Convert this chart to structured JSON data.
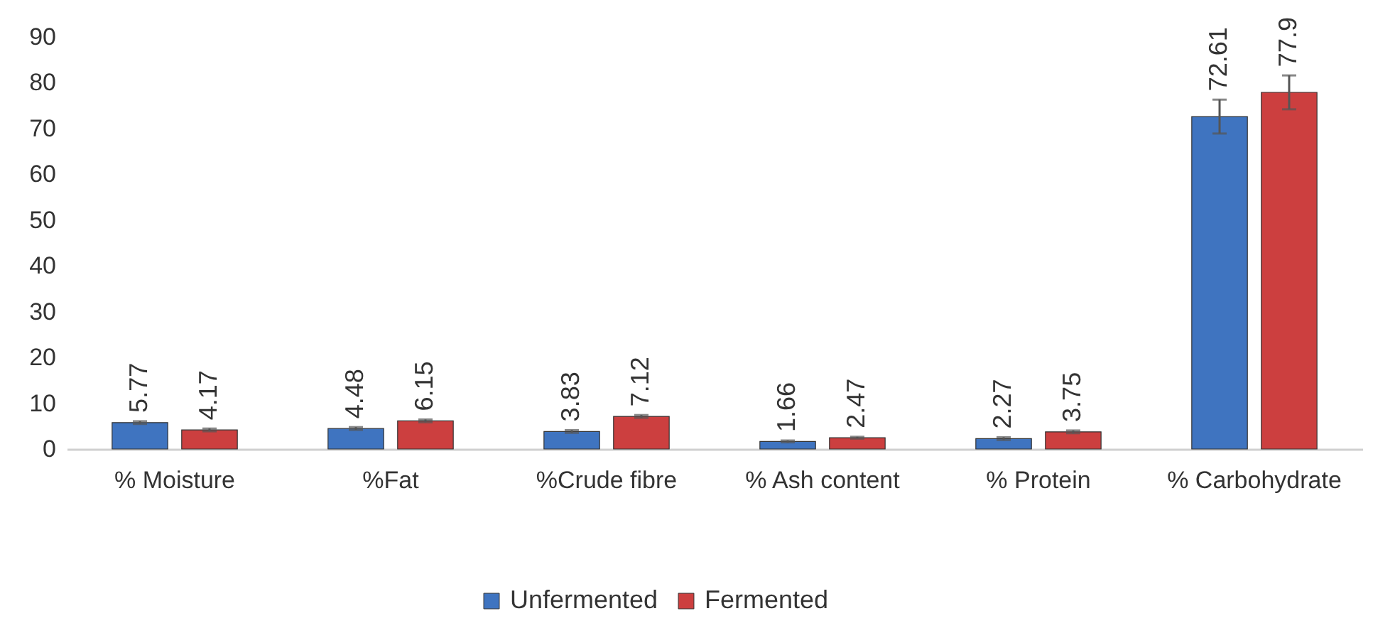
{
  "chart_data": {
    "type": "bar",
    "categories": [
      "% Moisture",
      "%Fat",
      "%Crude fibre",
      "% Ash content",
      "% Protein",
      "% Carbohydrate"
    ],
    "series": [
      {
        "name": "Unfermented",
        "color": "#3f74c0",
        "values": [
          5.77,
          4.48,
          3.83,
          1.66,
          2.27,
          72.61
        ],
        "errors": [
          0.3,
          0.3,
          0.3,
          0.2,
          0.3,
          3.7
        ]
      },
      {
        "name": "Fermented",
        "color": "#cc3f3f",
        "values": [
          4.17,
          6.15,
          7.12,
          2.47,
          3.75,
          77.9
        ],
        "errors": [
          0.3,
          0.3,
          0.3,
          0.2,
          0.3,
          3.7
        ]
      }
    ],
    "ylim": [
      0,
      90
    ],
    "yticks": [
      0,
      10,
      20,
      30,
      40,
      50,
      60,
      70,
      80,
      90
    ],
    "grid": false,
    "legend": "bottom",
    "data_labels": true
  }
}
